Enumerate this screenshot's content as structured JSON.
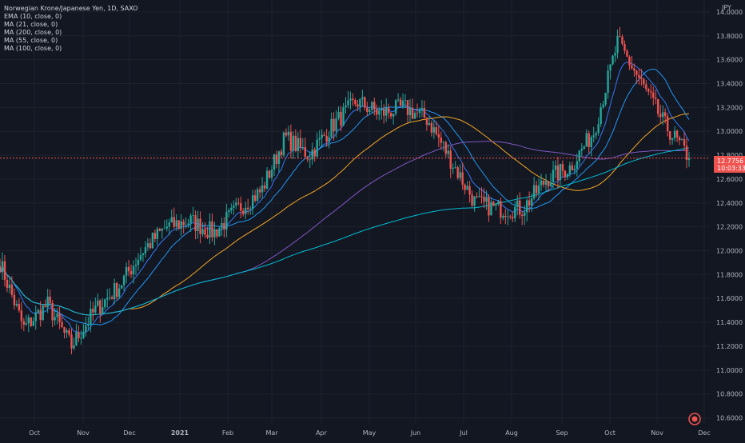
{
  "colors": {
    "background": "#131722",
    "grid": "#1e222d",
    "axis_text": "#b2b5be",
    "up": "#26a69a",
    "down": "#ef5350",
    "ema10": "#3179f5",
    "ma21": "#2196f3",
    "ma200": "#00bcd4",
    "ma55": "#f5a623",
    "ma100": "#7e57c2",
    "price_line": "#ef5350"
  },
  "legend": {
    "symbol": "Norwegian Krone/Japanese Yen, 1D, SAXO",
    "studies": [
      "EMA (10, close, 0)",
      "MA (21, close, 0)",
      "MA (200, close, 0)",
      "MA (55, close, 0)",
      "MA (100, close, 0)"
    ]
  },
  "price_tag": {
    "price": "12.7756",
    "countdown": "10:03:33"
  },
  "chart_data": {
    "type": "candlestick",
    "currency_label": "JPY",
    "ylim": [
      10.55,
      14.1
    ],
    "y_ticks": [
      10.6,
      10.8,
      11.0,
      11.2,
      11.4,
      11.6,
      11.8,
      12.0,
      12.2,
      12.4,
      12.6,
      12.8,
      13.0,
      13.2,
      13.4,
      13.6,
      13.8,
      14.0
    ],
    "x_ticks": [
      "Oct",
      "Nov",
      "Dec",
      "2021",
      "Feb",
      "Mar",
      "Apr",
      "May",
      "Jun",
      "Jul",
      "Aug",
      "Sep",
      "Oct",
      "Nov",
      "Dec"
    ],
    "last_price": 12.7756,
    "close_anchors": [
      [
        "Sep",
        11.9
      ],
      [
        "Oct",
        11.35
      ],
      [
        "Oct",
        11.55
      ],
      [
        "Nov",
        11.2
      ],
      [
        "Nov",
        11.5
      ],
      [
        "Dec",
        11.7
      ],
      [
        "Dec",
        12.0
      ],
      [
        "2021",
        12.2
      ],
      [
        "2021",
        12.25
      ],
      [
        "Feb",
        12.15
      ],
      [
        "Feb",
        12.35
      ],
      [
        "Mar",
        12.5
      ],
      [
        "Mar",
        12.95
      ],
      [
        "Apr",
        12.8
      ],
      [
        "Apr",
        13.05
      ],
      [
        "May",
        13.25
      ],
      [
        "May",
        13.15
      ],
      [
        "Jun",
        13.2
      ],
      [
        "Jun",
        13.1
      ],
      [
        "Jul",
        12.75
      ],
      [
        "Jul",
        12.4
      ],
      [
        "Aug",
        12.35
      ],
      [
        "Aug",
        12.35
      ],
      [
        "Sep",
        12.6
      ],
      [
        "Sep",
        12.7
      ],
      [
        "Oct",
        13.0
      ],
      [
        "Oct",
        13.75
      ],
      [
        "Nov",
        13.4
      ],
      [
        "Nov",
        13.05
      ],
      [
        "Dec",
        12.78
      ]
    ],
    "series": [
      {
        "name": "EMA (10, close, 0)"
      },
      {
        "name": "MA (21, close, 0)"
      },
      {
        "name": "MA (55, close, 0)"
      },
      {
        "name": "MA (100, close, 0)"
      },
      {
        "name": "MA (200, close, 0)"
      }
    ]
  }
}
